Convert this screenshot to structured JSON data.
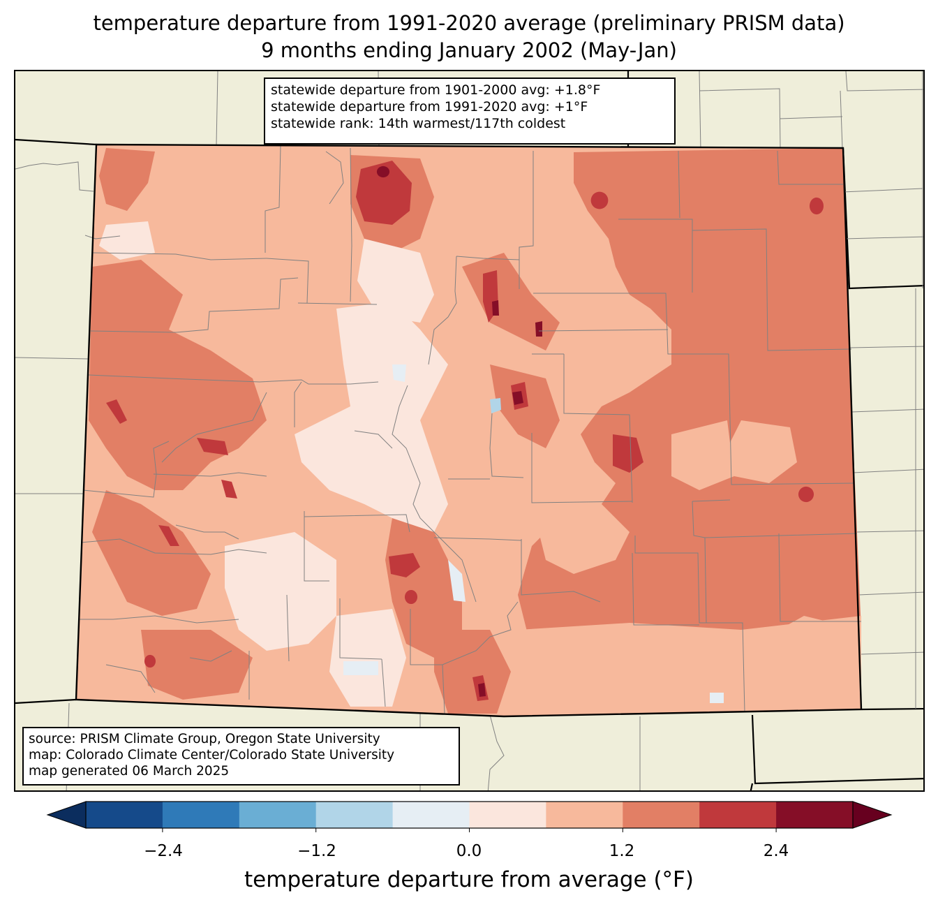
{
  "title": {
    "line1": "temperature departure from 1991-2020 average (preliminary PRISM data)",
    "line2": "9 months ending January 2002 (May-Jan)"
  },
  "stats": {
    "line1": "statewide departure from 1901-2000 avg: +1.8°F",
    "line2": "statewide departure from 1991-2020 avg: +1°F",
    "line3": "statewide rank: 14th warmest/117th coldest"
  },
  "source": {
    "line1": "source: PRISM Climate Group, Oregon State University",
    "line2": "map: Colorado Climate Center/Colorado State University",
    "line3": "map generated 06 March 2025"
  },
  "colorbar": {
    "label": "temperature departure from average (°F)",
    "ticks": [
      "−2.4",
      "−1.2",
      "0.0",
      "1.2",
      "2.4"
    ],
    "bins": [
      -3.0,
      -2.4,
      -1.8,
      -1.2,
      -0.6,
      0.0,
      0.6,
      1.2,
      1.8,
      2.4,
      3.0
    ],
    "colors": [
      "#6a0c1f"
    ],
    "bin_colors": [
      "#154a8a",
      "#2f7ab8",
      "#6aaed4",
      "#b1d5e8",
      "#e6eef4",
      "#fbe6dd",
      "#f7b99c",
      "#e27f65",
      "#c0393c",
      "#850e27"
    ],
    "under_color": "#0b2d5e",
    "over_color": "#67001f"
  },
  "map_colors": {
    "background": "#efeeda",
    "state_border": "#000000",
    "county_lines": "#808080"
  }
}
